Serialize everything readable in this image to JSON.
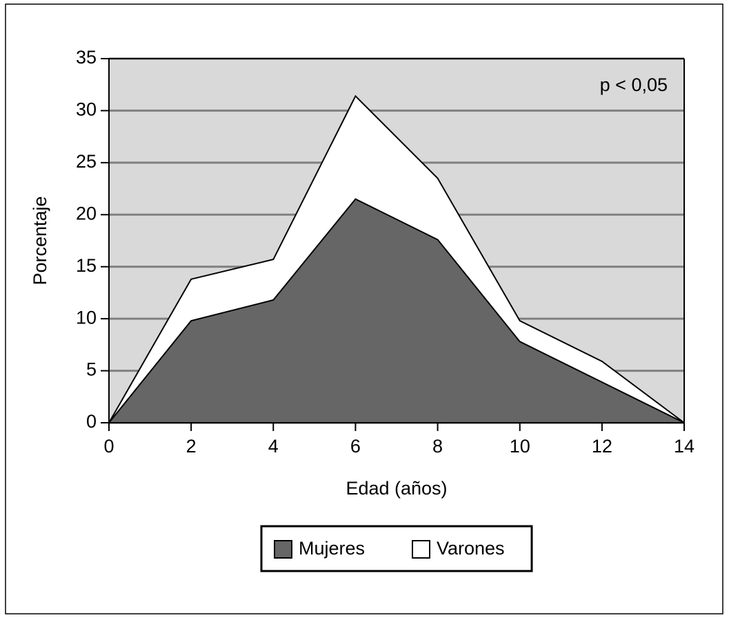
{
  "chart_data": {
    "type": "area",
    "x_label": "Edad (años)",
    "y_label": "Porcentaje",
    "annotation": "p < 0,05",
    "x": [
      0,
      2,
      4,
      6,
      8,
      10,
      12,
      14
    ],
    "series": [
      {
        "name": "Mujeres",
        "color": "#666666",
        "values": [
          0,
          9.8,
          11.8,
          21.5,
          17.6,
          7.8,
          3.9,
          0
        ]
      },
      {
        "name": "Varones",
        "color": "#ffffff",
        "values": [
          0,
          13.8,
          15.7,
          31.4,
          23.5,
          9.8,
          5.9,
          0
        ]
      }
    ],
    "xlim": [
      0,
      14
    ],
    "xticks": [
      0,
      2,
      4,
      6,
      8,
      10,
      12,
      14
    ],
    "ylim": [
      0,
      35
    ],
    "yticks": [
      0,
      5,
      10,
      15,
      20,
      25,
      30,
      35
    ],
    "grid": true,
    "plot_background": "#d9d9d9"
  }
}
